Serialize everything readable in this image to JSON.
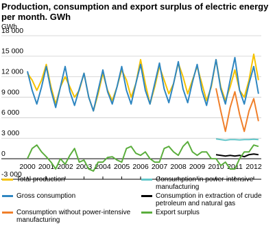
{
  "chart_data": {
    "type": "line",
    "title": "Production, consumption and export surplus of electric energy per month. GWh",
    "y_label": "GWh",
    "x": [
      2000,
      2000.25,
      2000.5,
      2000.75,
      2001,
      2001.25,
      2001.5,
      2001.75,
      2002,
      2002.25,
      2002.5,
      2002.75,
      2003,
      2003.25,
      2003.5,
      2003.75,
      2004,
      2004.25,
      2004.5,
      2004.75,
      2005,
      2005.25,
      2005.5,
      2005.75,
      2006,
      2006.25,
      2006.5,
      2006.75,
      2007,
      2007.25,
      2007.5,
      2007.75,
      2008,
      2008.25,
      2008.5,
      2008.75,
      2009,
      2009.25,
      2009.5,
      2009.75,
      2010,
      2010.25,
      2010.5,
      2010.75,
      2011,
      2011.25,
      2011.5,
      2011.75,
      2012,
      2012.25
    ],
    "xlim": [
      2000,
      2012.4
    ],
    "xticks": [
      2000,
      2001,
      2002,
      2003,
      2004,
      2005,
      2006,
      2007,
      2008,
      2009,
      2010,
      2011,
      2012
    ],
    "ylim": [
      -3000,
      18000
    ],
    "yticks": [
      {
        "value": -3000,
        "label": "-3 000"
      },
      0,
      {
        "value": 3000,
        "label": "3 000"
      },
      {
        "value": 6000,
        "label": "6 000"
      },
      {
        "value": 9000,
        "label": "9 000"
      },
      {
        "value": 12000,
        "label": "12 000"
      },
      {
        "value": 15000,
        "label": "15 000"
      },
      {
        "value": 18000,
        "label": "18 000"
      }
    ],
    "grid": true,
    "legend": "bottom",
    "series": [
      {
        "name": "Total production",
        "color": "#f5c200",
        "values": [
          12500,
          11500,
          10000,
          11500,
          13800,
          10500,
          8000,
          10500,
          12000,
          10500,
          9000,
          10000,
          12500,
          9000,
          7000,
          9500,
          12500,
          10000,
          8500,
          10500,
          13000,
          11500,
          9000,
          11000,
          14500,
          11000,
          8000,
          10500,
          13500,
          11500,
          9500,
          11000,
          14000,
          12000,
          9500,
          11500,
          13500,
          11000,
          8500,
          10500,
          14500,
          10500,
          8500,
          10500,
          13000,
          10000,
          9000,
          11500,
          15300,
          11500
        ]
      },
      {
        "name": "Gross consumption",
        "color": "#2e86c1",
        "values": [
          12800,
          10000,
          8000,
          10500,
          13500,
          10000,
          7500,
          10500,
          13500,
          9800,
          7800,
          10200,
          12500,
          9000,
          7000,
          10000,
          13000,
          9800,
          8000,
          10500,
          13500,
          10000,
          8000,
          11000,
          13800,
          10000,
          8000,
          11000,
          14000,
          10200,
          8200,
          11000,
          14200,
          10200,
          8200,
          11200,
          13800,
          10000,
          7800,
          10800,
          14500,
          10200,
          8000,
          11500,
          14800,
          10000,
          8000,
          11000,
          13500,
          9500
        ]
      },
      {
        "name": "Consumption without power-intensive manufacturing",
        "color": "#f07f2a",
        "values": [
          null,
          null,
          null,
          null,
          null,
          null,
          null,
          null,
          null,
          null,
          null,
          null,
          null,
          null,
          null,
          null,
          null,
          null,
          null,
          null,
          null,
          null,
          null,
          null,
          null,
          null,
          null,
          null,
          null,
          null,
          null,
          null,
          null,
          null,
          null,
          null,
          null,
          null,
          null,
          null,
          10300,
          7000,
          4000,
          7500,
          9800,
          6500,
          4000,
          7000,
          8800,
          5500
        ]
      },
      {
        "name": "Consumption in power-intensive manufacturing",
        "color": "#62c6c9",
        "values": [
          null,
          null,
          null,
          null,
          null,
          null,
          null,
          null,
          null,
          null,
          null,
          null,
          null,
          null,
          null,
          null,
          null,
          null,
          null,
          null,
          null,
          null,
          null,
          null,
          null,
          null,
          null,
          null,
          null,
          null,
          null,
          null,
          null,
          null,
          null,
          null,
          null,
          null,
          null,
          null,
          2900,
          2800,
          2700,
          2800,
          2800,
          2750,
          2800,
          2800,
          2850,
          2800
        ]
      },
      {
        "name": "Consumption in extraction of crude petroleum and natural gas",
        "color": "#000000",
        "values": [
          null,
          null,
          null,
          null,
          null,
          null,
          null,
          null,
          null,
          null,
          null,
          null,
          null,
          null,
          null,
          null,
          null,
          null,
          null,
          null,
          null,
          null,
          null,
          null,
          null,
          null,
          null,
          null,
          null,
          null,
          null,
          null,
          null,
          null,
          null,
          null,
          null,
          null,
          null,
          null,
          600,
          500,
          400,
          500,
          400,
          500,
          300,
          600,
          700,
          600
        ]
      },
      {
        "name": "Export surplus",
        "color": "#5aad3c",
        "values": [
          0,
          1500,
          2000,
          1000,
          300,
          -500,
          -1500,
          0,
          -800,
          500,
          1500,
          -500,
          -200,
          -1500,
          -1800,
          -500,
          -500,
          200,
          300,
          -200,
          -500,
          1500,
          1800,
          800,
          500,
          1000,
          0,
          -500,
          -500,
          1500,
          1800,
          1000,
          500,
          1800,
          2500,
          1000,
          500,
          1000,
          1000,
          0,
          0,
          -1000,
          -500,
          -1500,
          -1500,
          0,
          1000,
          1000,
          2000,
          1800
        ]
      }
    ]
  }
}
